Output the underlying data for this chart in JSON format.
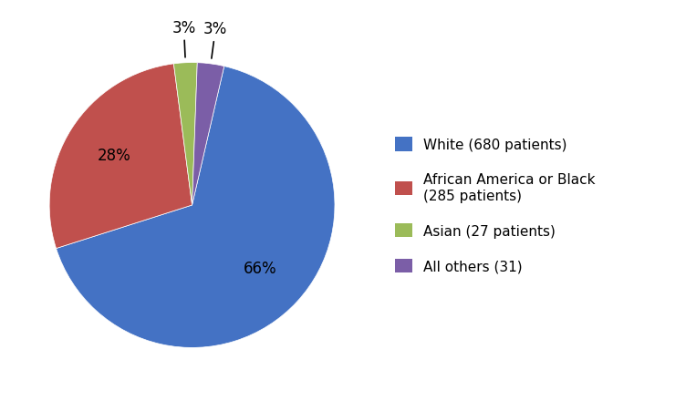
{
  "slices": [
    680,
    285,
    27,
    31
  ],
  "labels": [
    "White (680 patients)",
    "African America or Black\n(285 patients)",
    "Asian (27 patients)",
    "All others (31)"
  ],
  "colors": [
    "#4472C4",
    "#C0504D",
    "#9BBB59",
    "#7B5EA7"
  ],
  "autopct_labels": [
    "66%",
    "28%",
    "3%",
    "3%"
  ],
  "background_color": "#FFFFFF",
  "legend_fontsize": 11,
  "autopct_fontsize": 12,
  "startangle": 77
}
